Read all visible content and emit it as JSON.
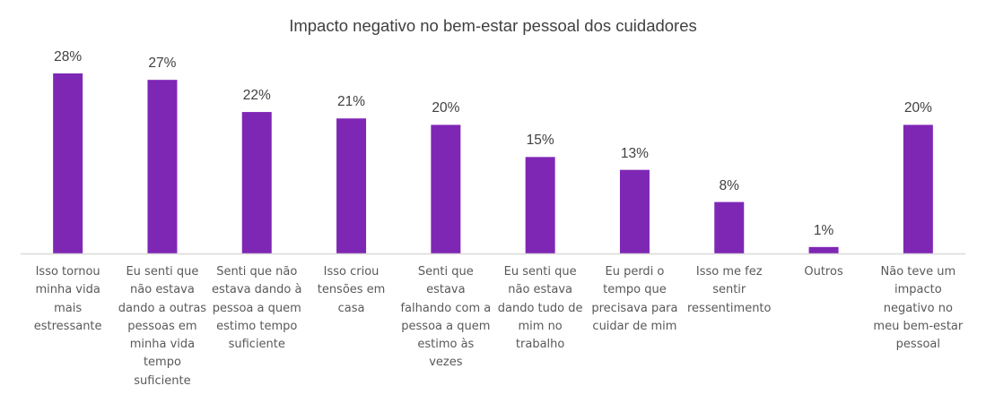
{
  "chart_data": {
    "type": "bar",
    "title": "Impacto negativo no bem-estar pessoal dos cuidadores",
    "categories": [
      "Isso tornou\nminha vida\nmais\nestressante",
      "Eu senti que\nnão estava\ndando a outras\npessoas em\nminha vida\ntempo\nsuficiente",
      "Senti que não\nestava dando à\npessoa a quem\nestimo tempo\nsuficiente",
      "Isso criou\ntensões em\ncasa",
      "Senti que\nestava\nfalhando com a\npessoa a quem\nestimo às\nvezes",
      "Eu senti que\nnão estava\ndando tudo de\nmim no\ntrabalho",
      "Eu perdi o\ntempo que\nprecisava para\ncuidar de mim",
      "Isso me fez\nsentir\nressentimento",
      "Outros",
      "Não teve um\nimpacto\nnegativo no\nmeu bem-estar\npessoal"
    ],
    "values": [
      28,
      27,
      22,
      21,
      20,
      15,
      13,
      8,
      1,
      20
    ],
    "data_labels": [
      "28%",
      "27%",
      "22%",
      "21%",
      "20%",
      "15%",
      "13%",
      "8%",
      "1%",
      "20%"
    ],
    "ylim": [
      0,
      28
    ],
    "grid": false,
    "legend": "none",
    "colors": {
      "bar": "#7F27B5",
      "axis": "#D9D9D9"
    }
  }
}
